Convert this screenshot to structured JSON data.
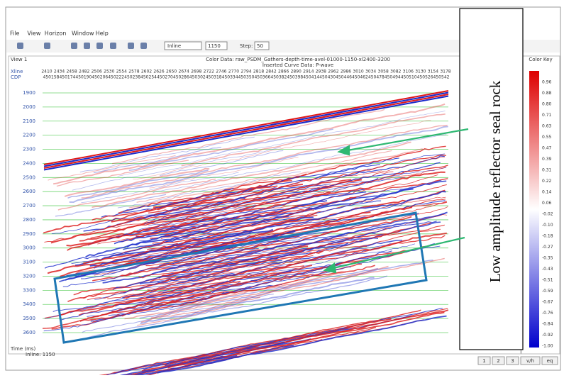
{
  "menu": [
    "File",
    "View",
    "Horizon",
    "Window",
    "Help"
  ],
  "toolbar": {
    "mode": "Inline",
    "value": "1150",
    "step_label": "Step:",
    "step": "50"
  },
  "view": {
    "title": "View 1",
    "color_data": "Color Data: raw_PSDM_Gathers-depth-time-avel-01000-1150-xl2400-3200",
    "curve_data": "Inserted Curve Data: P-wave",
    "xline_label": "Xline",
    "cdp_label": "CDP",
    "xlines": [
      2410,
      2434,
      2458,
      2482,
      2506,
      2530,
      2554,
      2578,
      2602,
      2626,
      2650,
      2674,
      2698,
      2722,
      2746,
      2770,
      2794,
      2818,
      2842,
      2866,
      2890,
      2914,
      2938,
      2962,
      2986,
      3010,
      3034,
      3058,
      3082,
      3106,
      3130,
      3154,
      3178
    ],
    "cdps": [
      450158,
      450174,
      450190,
      450206,
      450222,
      450238,
      450254,
      450270,
      450286,
      450302,
      450318,
      450334,
      450350,
      450366,
      450382,
      450398,
      450414,
      450430,
      450446,
      450462,
      450478,
      450494,
      450510,
      450526,
      450542
    ],
    "depths": [
      1900,
      2000,
      2100,
      2200,
      2300,
      2400,
      2500,
      2600,
      2700,
      2800,
      2900,
      3000,
      3100,
      3200,
      3300,
      3400,
      3500,
      3600
    ],
    "axis_label": "Time (ms)",
    "inline_label": "Inline: 1150"
  },
  "color_key": {
    "title": "Color Key",
    "labels": [
      "0.96",
      "0.88",
      "0.80",
      "0.71",
      "0.63",
      "0.55",
      "0.47",
      "0.39",
      "0.31",
      "0.22",
      "0.14",
      "0.06",
      "-0.02",
      "-0.10",
      "-0.18",
      "-0.27",
      "-0.35",
      "-0.43",
      "-0.51",
      "-0.59",
      "-0.67",
      "-0.76",
      "-0.84",
      "-0.92",
      "-1.00"
    ]
  },
  "annotation": "Low amplitude reflector seal rock",
  "buttons": [
    "1",
    "2",
    "3",
    "v/h",
    "eq"
  ]
}
